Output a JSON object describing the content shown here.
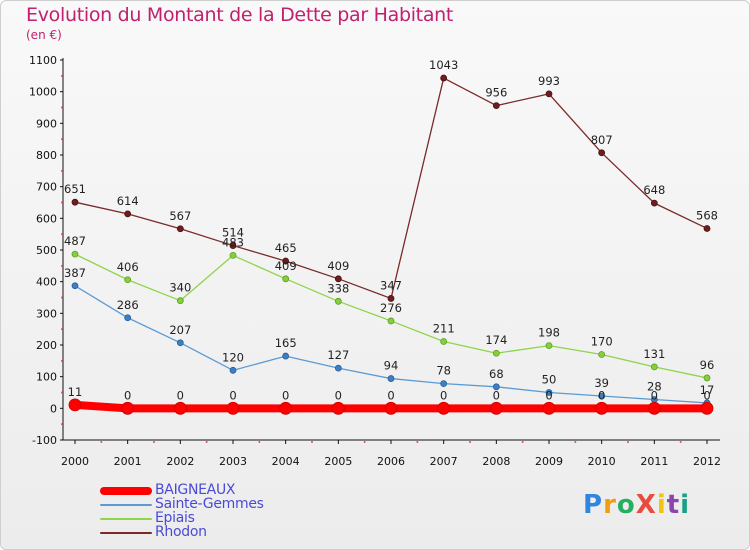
{
  "header": {
    "title": "Evolution du Montant de la Dette par Habitant",
    "unit": "(en €)"
  },
  "logo": {
    "text": "ProXiti"
  },
  "chart_data": {
    "type": "line",
    "title": "Evolution du Montant de la Dette par Habitant",
    "subtitle": "(en €)",
    "xlabel": "",
    "ylabel": "",
    "x": [
      "2000",
      "2001",
      "2002",
      "2003",
      "2004",
      "2005",
      "2006",
      "2007",
      "2008",
      "2009",
      "2010",
      "2011",
      "2012"
    ],
    "ylim": [
      -100,
      1100
    ],
    "yticks": [
      -100,
      0,
      100,
      200,
      300,
      400,
      500,
      600,
      700,
      800,
      900,
      1000,
      1100
    ],
    "grid": false,
    "legend_position": "bottom-left",
    "series": [
      {
        "name": "BAIGNEAUX",
        "color": "#ff0000",
        "values": [
          11,
          0,
          0,
          0,
          0,
          0,
          0,
          0,
          0,
          0,
          0,
          0,
          0
        ]
      },
      {
        "name": "Sainte-Gemmes",
        "color": "#5b9bd5",
        "values": [
          387,
          286,
          207,
          120,
          165,
          127,
          94,
          78,
          68,
          50,
          39,
          28,
          17
        ]
      },
      {
        "name": "Epiais",
        "color": "#8fd44a",
        "values": [
          487,
          406,
          340,
          483,
          409,
          338,
          276,
          211,
          174,
          198,
          170,
          131,
          96
        ]
      },
      {
        "name": "Rhodon",
        "color": "#7a2a2a",
        "values": [
          651,
          614,
          567,
          514,
          465,
          409,
          347,
          1043,
          956,
          993,
          807,
          648,
          568
        ]
      }
    ],
    "data_labels": {
      "BAIGNEAUX": [
        "11",
        "0",
        "0",
        "0",
        "0",
        "0",
        "0",
        "0",
        "0",
        "0",
        "0",
        "0",
        "0"
      ],
      "Sainte-Gemmes": [
        "387",
        "286",
        "207",
        "120",
        "165",
        "127",
        "94",
        "78",
        "68",
        "50",
        "39",
        "28",
        "17"
      ],
      "Epiais": [
        "487",
        "406",
        "340",
        "483",
        "409",
        "338",
        "276",
        "211",
        "174",
        "198",
        "170",
        "131",
        "96"
      ],
      "Rhodon": [
        "651",
        "614",
        "567",
        "514",
        "465",
        "409",
        "347",
        "1043",
        "956",
        "993",
        "807",
        "648",
        "568"
      ]
    }
  }
}
